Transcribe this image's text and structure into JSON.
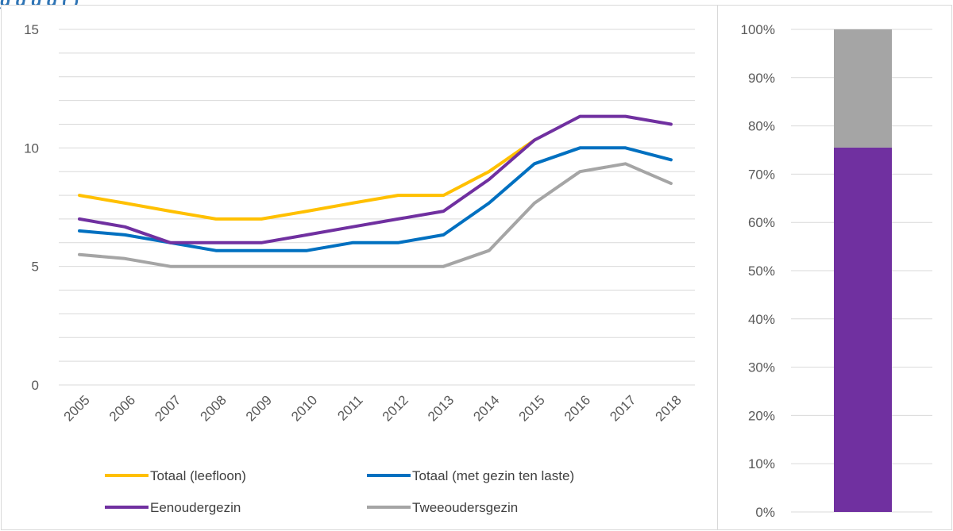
{
  "header": {
    "title": "g                                 g                g            g     (                                    )"
  },
  "chart_data": [
    {
      "type": "line",
      "title": "",
      "xlabel": "",
      "ylabel": "",
      "x": [
        "2005",
        "2006",
        "2007",
        "2008",
        "2009",
        "2010",
        "2011",
        "2012",
        "2013",
        "2014",
        "2015",
        "2016",
        "2017",
        "2018"
      ],
      "ylim": [
        0,
        15
      ],
      "yticks": [
        "0",
        "5",
        "10",
        "15"
      ],
      "grid": true,
      "legend_position": "bottom",
      "series": [
        {
          "name": "Totaal (leefloon)",
          "color": "#ffc000",
          "values": [
            8.0,
            7.67,
            7.33,
            7.0,
            7.0,
            7.33,
            7.67,
            8.0,
            8.0,
            9.0,
            10.33,
            null,
            null,
            null
          ]
        },
        {
          "name": "Totaal (met gezin ten laste)",
          "color": "#0070c0",
          "values": [
            6.5,
            6.33,
            6.0,
            5.67,
            5.67,
            5.67,
            6.0,
            6.0,
            6.33,
            7.67,
            9.33,
            10.0,
            10.0,
            9.5
          ]
        },
        {
          "name": "Eenoudergezin",
          "color": "#7030a0",
          "values": [
            7.0,
            6.67,
            6.0,
            6.0,
            6.0,
            6.33,
            6.67,
            7.0,
            7.33,
            8.67,
            10.33,
            11.33,
            11.33,
            11.0
          ]
        },
        {
          "name": "Tweeoudersgezin",
          "color": "#a5a5a5",
          "values": [
            5.5,
            5.33,
            5.0,
            5.0,
            5.0,
            5.0,
            5.0,
            5.0,
            5.0,
            5.67,
            7.67,
            9.0,
            9.33,
            8.5
          ]
        }
      ]
    },
    {
      "type": "bar",
      "stacked": true,
      "title": "",
      "ylim": [
        0,
        100
      ],
      "yticks": [
        "0%",
        "10%",
        "20%",
        "30%",
        "40%",
        "50%",
        "60%",
        "70%",
        "80%",
        "90%",
        "100%"
      ],
      "grid": true,
      "series": [
        {
          "color": "#7030a0",
          "values": [
            75.5
          ]
        },
        {
          "color": "#a5a5a5",
          "values": [
            24.5
          ]
        }
      ]
    }
  ]
}
